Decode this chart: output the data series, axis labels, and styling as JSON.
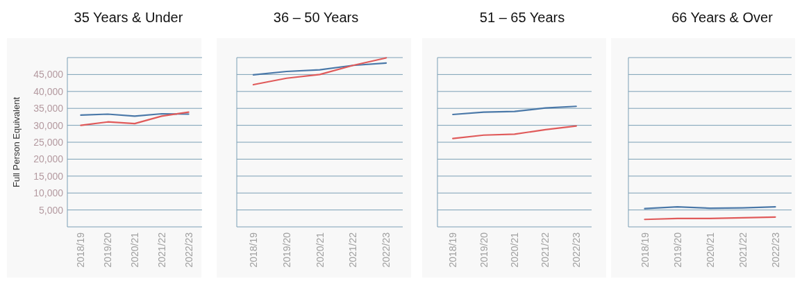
{
  "chart_data": [
    {
      "type": "line",
      "title": "35 Years & Under",
      "ylabel": "Full Person Equivalent",
      "categories": [
        "2018/19",
        "2019/20",
        "2020/21",
        "2021/22",
        "2022/23"
      ],
      "series": [
        {
          "color": "#4a78a8",
          "values": [
            33000,
            33300,
            32700,
            33400,
            33300
          ]
        },
        {
          "color": "#e05a5a",
          "values": [
            30000,
            31000,
            30500,
            32700,
            33900
          ]
        }
      ],
      "ylim": [
        0,
        50000
      ],
      "yticks": [
        {
          "value": 5000,
          "label": "5,000"
        },
        {
          "value": 10000,
          "label": "10,000"
        },
        {
          "value": 15000,
          "label": "15,000"
        },
        {
          "value": 20000,
          "label": "20,000"
        },
        {
          "value": 25000,
          "label": "25,000"
        },
        {
          "value": 30000,
          "label": "30,000"
        },
        {
          "value": 35000,
          "label": "35,000"
        },
        {
          "value": 40000,
          "label": "40,000"
        },
        {
          "value": 45000,
          "label": "45,000"
        },
        {
          "value": 50000,
          "label": null
        }
      ],
      "grid": "y"
    },
    {
      "type": "line",
      "title": "36 – 50 Years",
      "categories": [
        "2018/19",
        "2019/20",
        "2020/21",
        "2021/22",
        "2022/23"
      ],
      "series": [
        {
          "color": "#4a78a8",
          "values": [
            44900,
            45900,
            46400,
            47700,
            48400
          ]
        },
        {
          "color": "#e05a5a",
          "values": [
            42000,
            43900,
            45000,
            47700,
            49900
          ]
        }
      ],
      "ylim": [
        0,
        50000
      ],
      "yticks": [
        5000,
        10000,
        15000,
        20000,
        25000,
        30000,
        35000,
        40000,
        45000,
        50000
      ],
      "grid": "y",
      "tick_labels": "x"
    },
    {
      "type": "line",
      "title": "51 – 65 Years",
      "categories": [
        "2018/19",
        "2019/20",
        "2020/21",
        "2021/22",
        "2022/23"
      ],
      "series": [
        {
          "color": "#4a78a8",
          "values": [
            33200,
            33900,
            34100,
            35100,
            35600
          ]
        },
        {
          "color": "#e05a5a",
          "values": [
            26100,
            27100,
            27400,
            28700,
            29800
          ]
        }
      ],
      "ylim": [
        0,
        50000
      ],
      "yticks": [
        5000,
        10000,
        15000,
        20000,
        25000,
        30000,
        35000,
        40000,
        45000,
        50000
      ],
      "grid": "y",
      "tick_labels": "x"
    },
    {
      "type": "line",
      "title": "66 Years & Over",
      "categories": [
        "2018/19",
        "2019/20",
        "2020/21",
        "2021/22",
        "2022/23"
      ],
      "series": [
        {
          "color": "#4a78a8",
          "values": [
            5400,
            5900,
            5500,
            5600,
            5900
          ]
        },
        {
          "color": "#e05a5a",
          "values": [
            2200,
            2500,
            2500,
            2700,
            2900
          ]
        }
      ],
      "ylim": [
        0,
        50000
      ],
      "yticks": [
        5000,
        10000,
        15000,
        20000,
        25000,
        30000,
        35000,
        40000,
        45000,
        50000
      ],
      "grid": "y",
      "tick_labels": "x"
    }
  ]
}
